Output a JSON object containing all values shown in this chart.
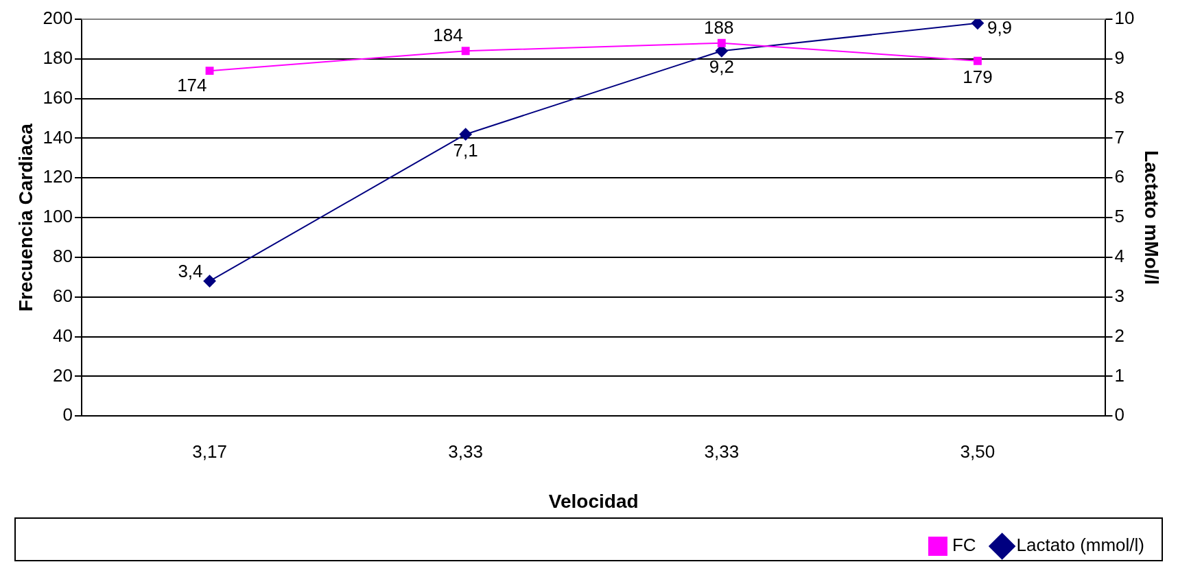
{
  "chart_data": {
    "type": "line",
    "xlabel": "Velocidad",
    "ylabel": "Frecuencia Cardiaca",
    "y2label": "Lactato mMol/l",
    "categories": [
      "3,17",
      "3,33",
      "3,33",
      "3,50"
    ],
    "series": [
      {
        "name": "FC",
        "color": "#ff00ff",
        "marker": "square",
        "values": [
          174,
          184,
          188,
          179
        ],
        "value_labels": [
          "174",
          "184",
          "188",
          "179"
        ]
      },
      {
        "name": "Lactato (mmol/l)",
        "color": "#000080",
        "marker": "diamond",
        "axis": "y2",
        "values": [
          3.4,
          7.1,
          9.2,
          9.9
        ],
        "value_labels": [
          "3,4",
          "7,1",
          "9,2",
          "9,9"
        ]
      }
    ],
    "ylim": [
      0,
      200
    ],
    "yticks": [
      0,
      20,
      40,
      60,
      80,
      100,
      120,
      140,
      160,
      180,
      200
    ],
    "y2lim": [
      0,
      10
    ],
    "y2ticks": [
      0,
      1,
      2,
      3,
      4,
      5,
      6,
      7,
      8,
      9,
      10
    ],
    "grid": "y",
    "legend": "bottom right"
  }
}
